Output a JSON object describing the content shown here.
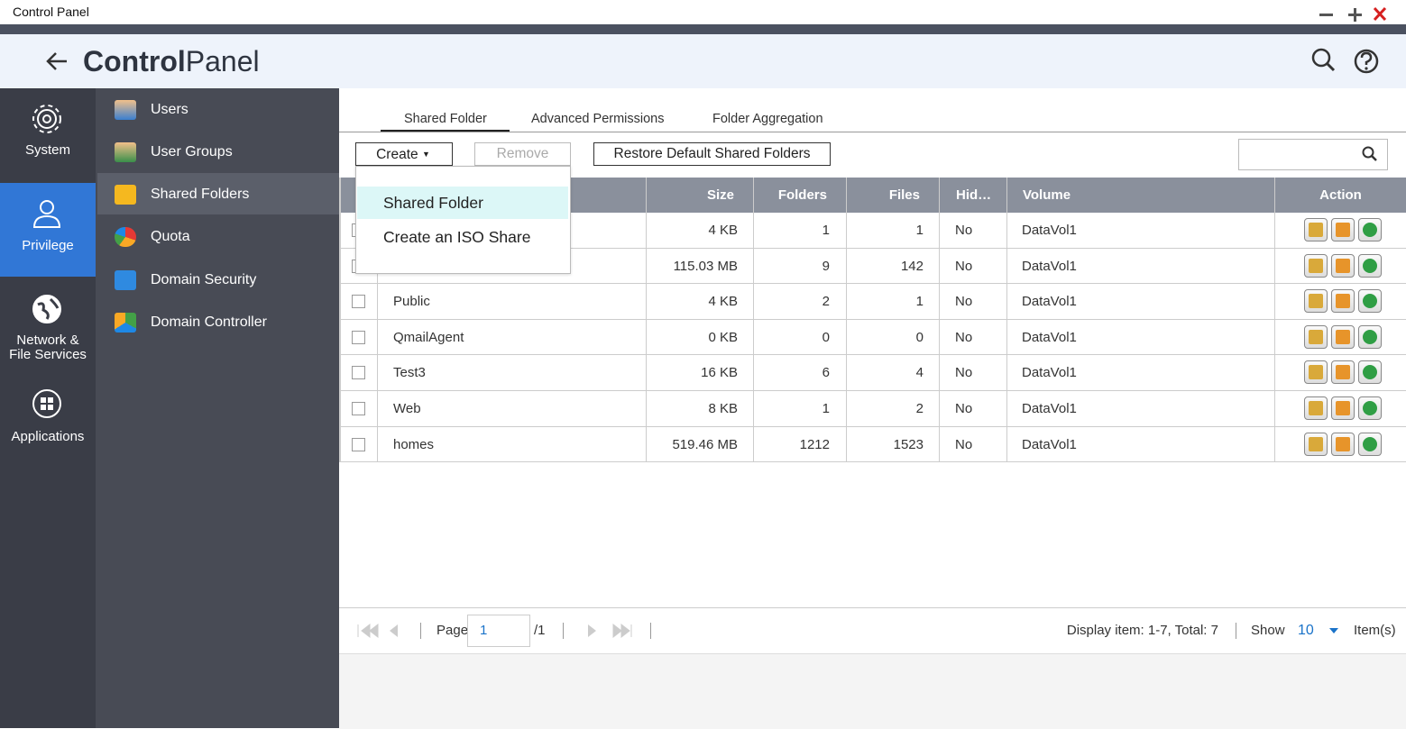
{
  "window": {
    "title": "Control Panel"
  },
  "header": {
    "title_bold": "Control",
    "title_light": "Panel"
  },
  "nav": {
    "items": [
      "System",
      "Privilege",
      "Network & File Services",
      "Applications"
    ]
  },
  "submenu": {
    "items": [
      "Users",
      "User Groups",
      "Shared Folders",
      "Quota",
      "Domain Security",
      "Domain Controller"
    ]
  },
  "tabs": [
    "Shared Folder",
    "Advanced Permissions",
    "Folder Aggregation"
  ],
  "toolbar": {
    "create": "Create",
    "remove": "Remove",
    "restore": "Restore Default Shared Folders"
  },
  "dropdown": {
    "items": [
      "Shared Folder",
      "Create an ISO Share"
    ]
  },
  "table": {
    "columns": {
      "size": "Size",
      "folders": "Folders",
      "files": "Files",
      "hidden": "Hid…",
      "volume": "Volume",
      "action": "Action"
    },
    "rows": [
      {
        "size": "4 KB",
        "folders": 1,
        "files": 1,
        "hidden": "No",
        "volume": "DataVol1"
      },
      {
        "size": "115.03 MB",
        "folders": 9,
        "files": 142,
        "hidden": "No",
        "volume": "DataVol1"
      },
      {
        "name": "Public",
        "size": "4 KB",
        "folders": 2,
        "files": 1,
        "hidden": "No",
        "volume": "DataVol1"
      },
      {
        "name": "QmailAgent",
        "size": "0 KB",
        "folders": 0,
        "files": 0,
        "hidden": "No",
        "volume": "DataVol1"
      },
      {
        "name": "Test3",
        "size": "16 KB",
        "folders": 6,
        "files": 4,
        "hidden": "No",
        "volume": "DataVol1"
      },
      {
        "name": "Web",
        "size": "8 KB",
        "folders": 1,
        "files": 2,
        "hidden": "No",
        "volume": "DataVol1"
      },
      {
        "name": "homes",
        "size": "519.46 MB",
        "folders": 1212,
        "files": 1523,
        "hidden": "No",
        "volume": "DataVol1"
      }
    ]
  },
  "footer": {
    "page_label": "Page",
    "page": 1,
    "page_total": "/1",
    "display": "Display item: 1-7, Total: 7",
    "show": "Show",
    "per_page": 10,
    "items_label": "Item(s)"
  }
}
